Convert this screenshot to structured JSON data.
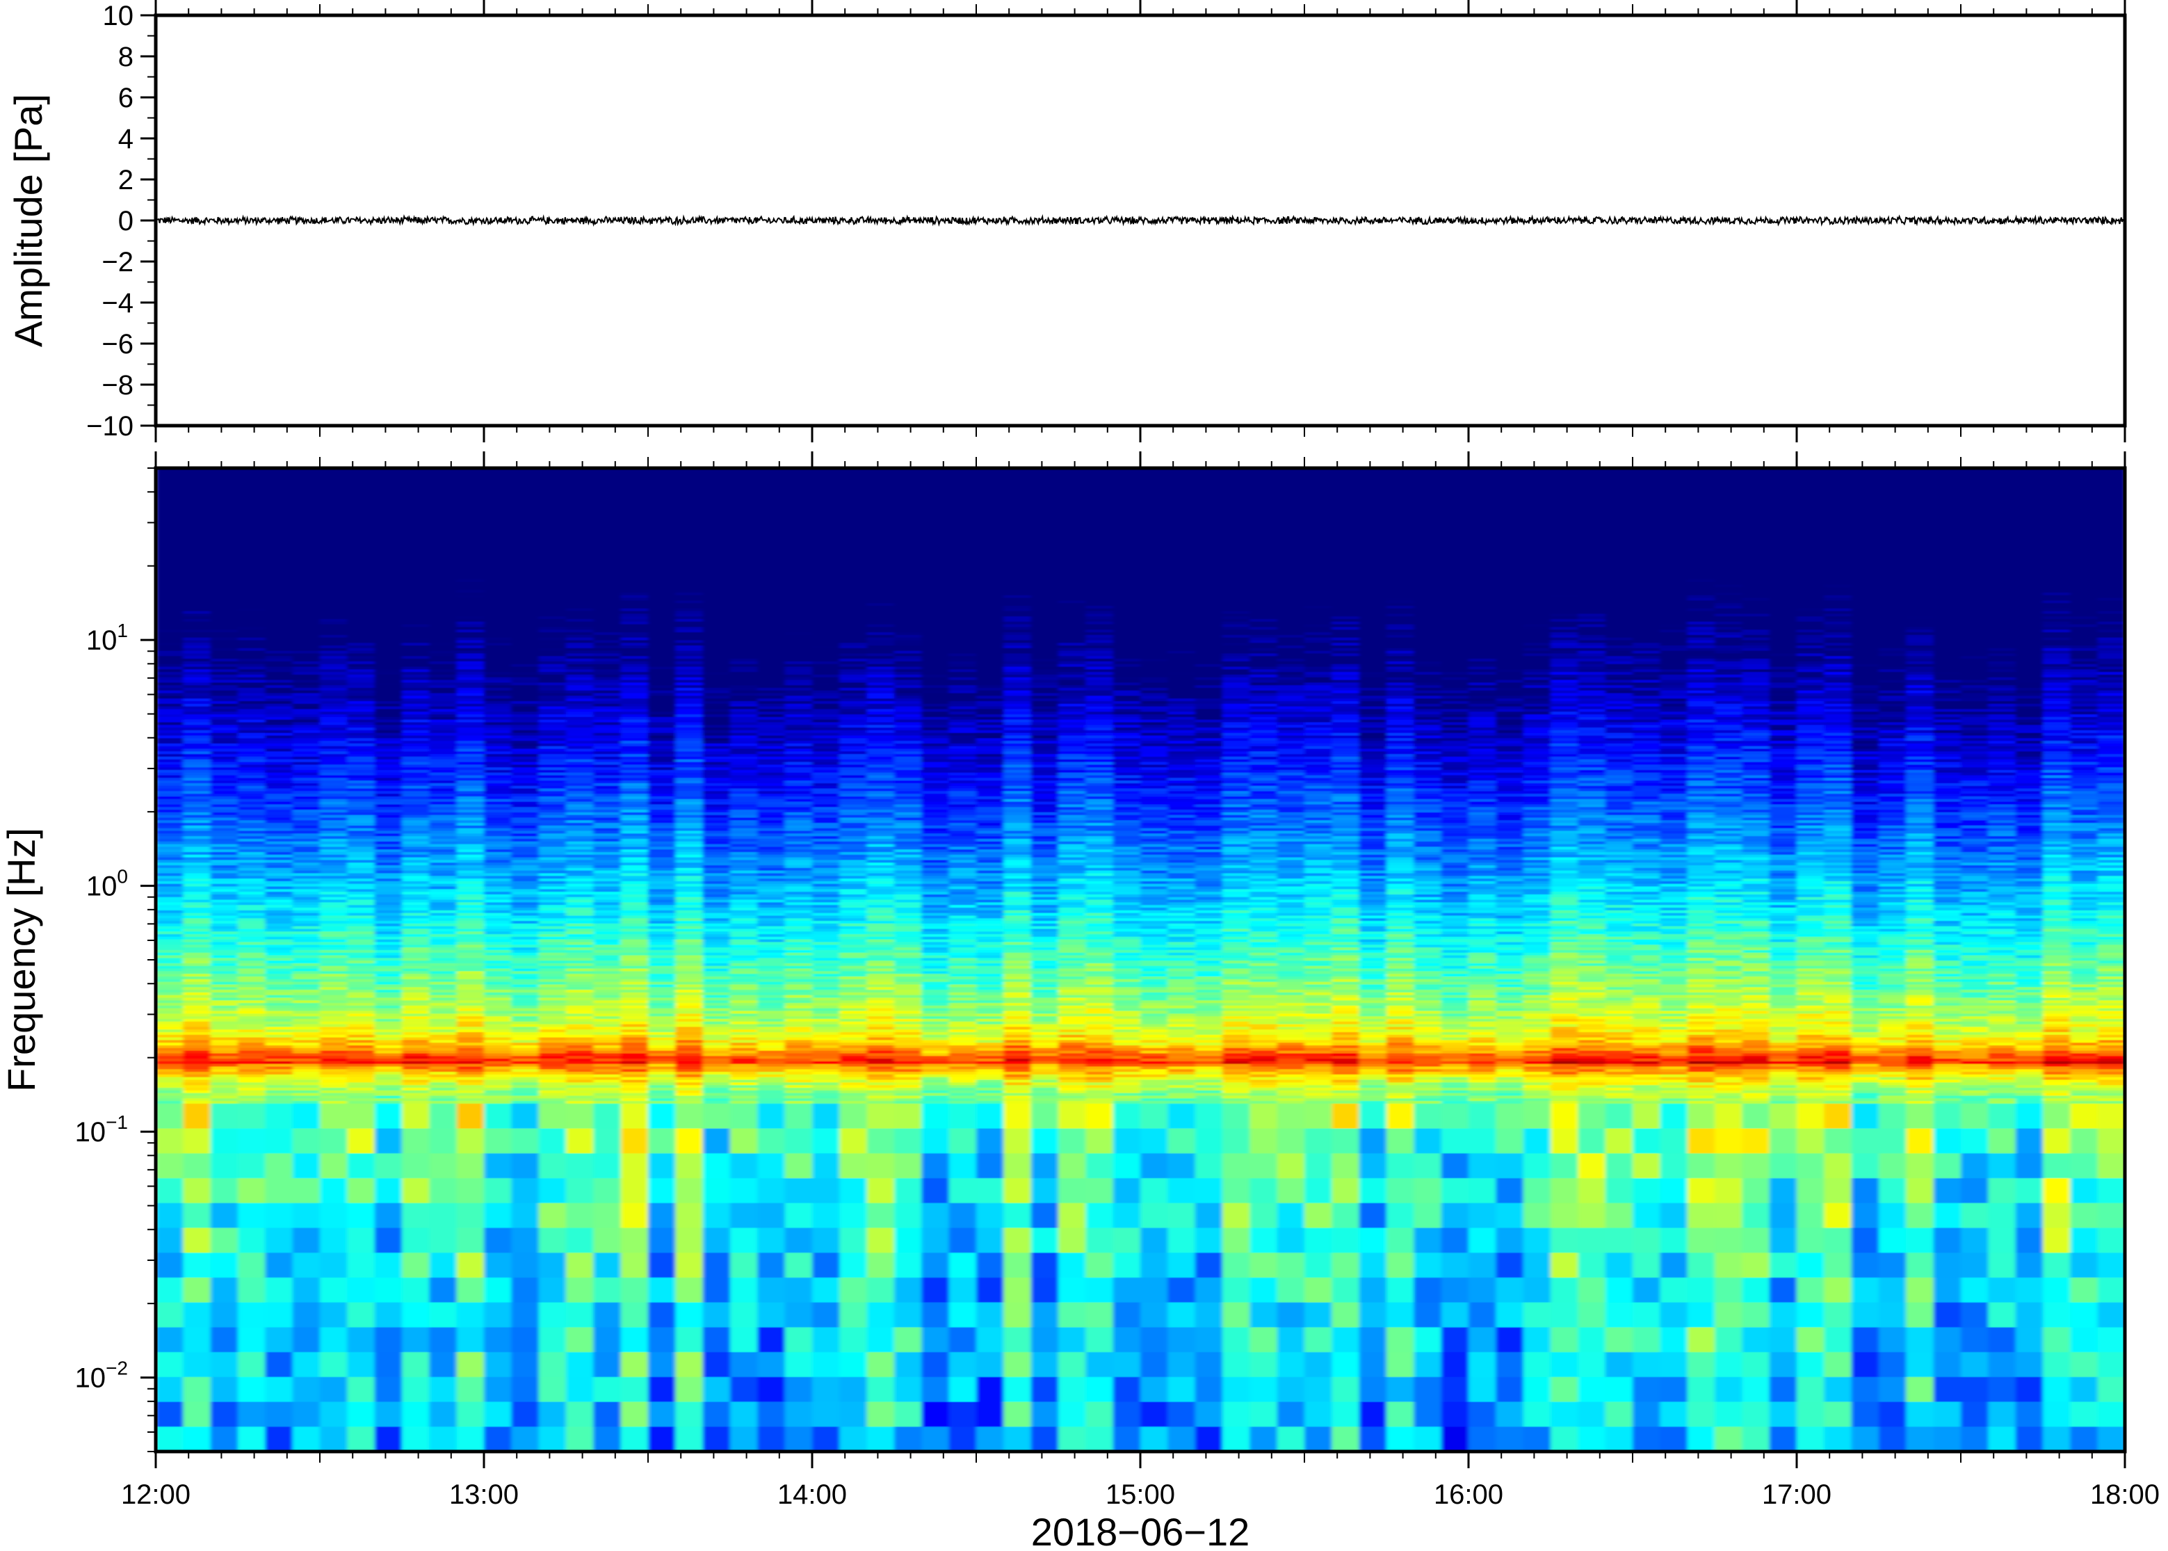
{
  "chart_data": [
    {
      "type": "line",
      "panel": "waveform",
      "ylabel": "Amplitude [Pa]",
      "xlabel": "",
      "ylim": [
        -10,
        10
      ],
      "yticks": [
        10,
        8,
        6,
        4,
        2,
        0,
        -2,
        -4,
        -6,
        -8,
        -10
      ],
      "ytick_labels": [
        "10",
        "8",
        "6",
        "4",
        "2",
        "0",
        "−2",
        "−4",
        "−6",
        "−8",
        "−10"
      ],
      "xlim": [
        "12:00",
        "18:00"
      ],
      "series": [
        {
          "description_values": "low-amplitude pressure trace fluctuating around 0 Pa",
          "approx_peak_amplitude": 0.2,
          "color": "#000000"
        }
      ],
      "grid": false
    },
    {
      "type": "heatmap",
      "panel": "spectrogram",
      "ylabel": "Frequency [Hz]",
      "xlabel": "2018−06−12",
      "yscale": "log",
      "ylim": [
        0.005,
        50
      ],
      "ytick_labels": [
        {
          "value": 10,
          "base": "10",
          "exp": "1"
        },
        {
          "value": 1,
          "base": "10",
          "exp": "0"
        },
        {
          "value": 0.1,
          "base": "10",
          "exp": "−1"
        },
        {
          "value": 0.01,
          "base": "10",
          "exp": "−2"
        }
      ],
      "x_tick_labels": [
        "12:00",
        "13:00",
        "14:00",
        "15:00",
        "16:00",
        "17:00",
        "18:00"
      ],
      "xlim": [
        "12:00",
        "18:00"
      ],
      "colormap": "jet",
      "dominant_band_hz": [
        0.15,
        0.25
      ],
      "notes_values": {
        "high_freq_level": "low (dark blue)",
        "microbarom_peak_hz": 0.19,
        "low_freq_level": "moderate (cyan-green)"
      },
      "grid": false
    }
  ],
  "colors": {
    "frame": "#000000",
    "trace": "#000000",
    "background": "#ffffff"
  }
}
